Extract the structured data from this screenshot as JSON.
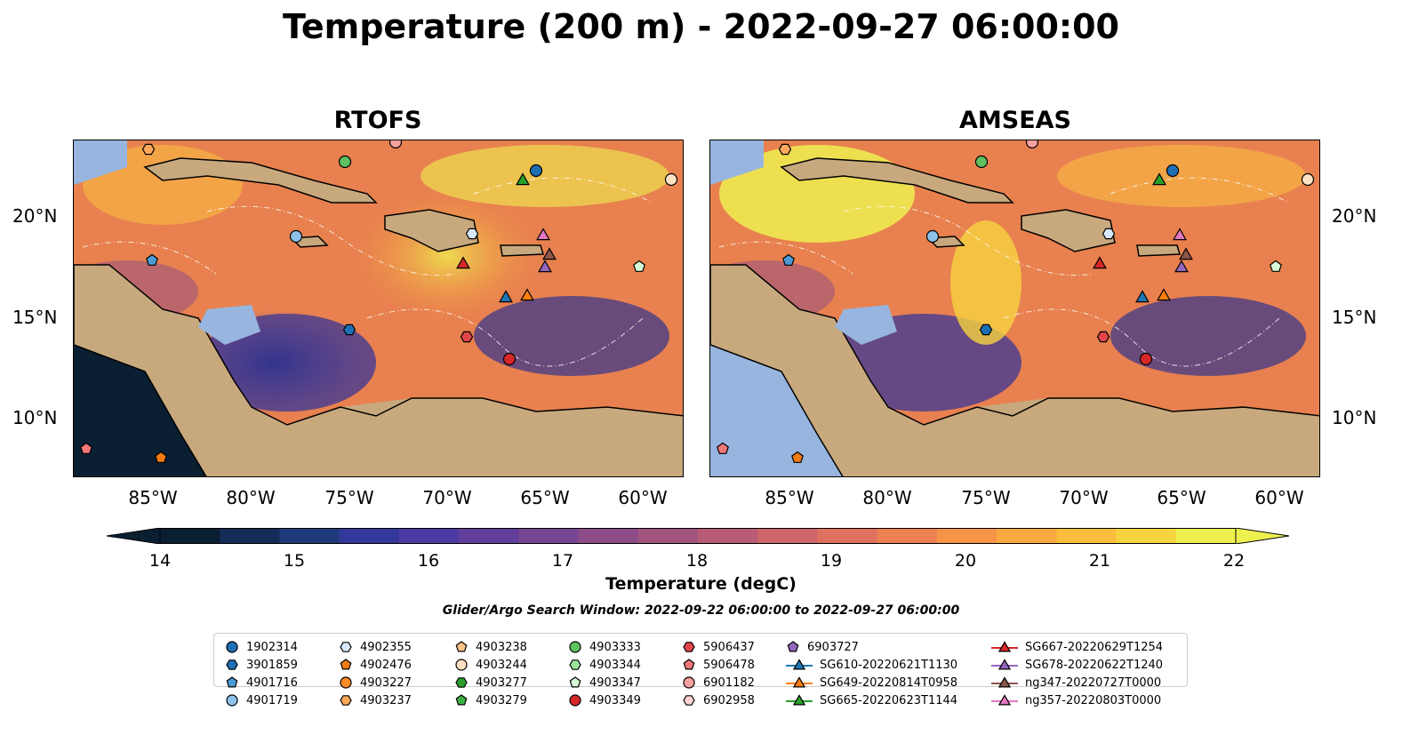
{
  "title": "Temperature (200 m) - 2022-09-27 06:00:00",
  "panels": [
    {
      "title": "RTOFS"
    },
    {
      "title": "AMSEAS"
    }
  ],
  "axes": {
    "x_ticks": [
      "85°W",
      "80°W",
      "75°W",
      "70°W",
      "65°W",
      "60°W"
    ],
    "y_ticks": [
      "20°N",
      "15°N",
      "10°N"
    ]
  },
  "colorbar": {
    "label": "Temperature (degC)",
    "ticks": [
      "14",
      "15",
      "16",
      "17",
      "18",
      "19",
      "20",
      "21",
      "22"
    ],
    "colors": [
      "#0b1f33",
      "#152b58",
      "#1e3a7a",
      "#34389a",
      "#4b3aa1",
      "#603e9a",
      "#764592",
      "#8b4c88",
      "#a1557f",
      "#b85c75",
      "#cf666a",
      "#e07160",
      "#ed8152",
      "#f69447",
      "#faa940",
      "#fbbd3c",
      "#f6d340",
      "#eef050"
    ]
  },
  "search_window": "Glider/Argo Search Window: 2022-09-22 06:00:00 to 2022-09-27 06:00:00",
  "legend": [
    [
      {
        "label": "1902314",
        "marker": "circle",
        "color": "#1f6fb4"
      },
      {
        "label": "3901859",
        "marker": "hexagon",
        "color": "#1f6fb4"
      },
      {
        "label": "4901716",
        "marker": "pentagon",
        "color": "#4a9bd6"
      },
      {
        "label": "4901719",
        "marker": "circle",
        "color": "#8ec2ec"
      }
    ],
    [
      {
        "label": "4902355",
        "marker": "hexagon",
        "color": "#d6e8fb"
      },
      {
        "label": "4902476",
        "marker": "pentagon",
        "color": "#f07a14"
      },
      {
        "label": "4903227",
        "marker": "circle",
        "color": "#ff8a26"
      },
      {
        "label": "4903237",
        "marker": "hexagon",
        "color": "#ffa85a"
      }
    ],
    [
      {
        "label": "4903238",
        "marker": "pentagon",
        "color": "#ffc48c"
      },
      {
        "label": "4903244",
        "marker": "circle",
        "color": "#ffe2c2"
      },
      {
        "label": "4903277",
        "marker": "hexagon",
        "color": "#2ca02c"
      },
      {
        "label": "4903279",
        "marker": "pentagon",
        "color": "#3cb043"
      }
    ],
    [
      {
        "label": "4903333",
        "marker": "circle",
        "color": "#5fc05f"
      },
      {
        "label": "4903344",
        "marker": "hexagon",
        "color": "#9be39b"
      },
      {
        "label": "4903347",
        "marker": "pentagon",
        "color": "#d7f8d4"
      },
      {
        "label": "4903349",
        "marker": "circle",
        "color": "#d62728"
      }
    ],
    [
      {
        "label": "5906437",
        "marker": "hexagon",
        "color": "#e0454a"
      },
      {
        "label": "5906478",
        "marker": "pentagon",
        "color": "#f07878"
      },
      {
        "label": "6901182",
        "marker": "circle",
        "color": "#f7a0a0"
      },
      {
        "label": "6902958",
        "marker": "hexagon",
        "color": "#fcd2d2"
      }
    ],
    [
      {
        "label": "6903727",
        "marker": "pentagon",
        "color": "#9467bd"
      },
      {
        "label": "SG610-20220621T1130",
        "marker": "triangle",
        "color": "#1f77b4"
      },
      {
        "label": "SG649-20220814T0958",
        "marker": "triangle",
        "color": "#ff7f0e"
      },
      {
        "label": "SG665-20220623T1144",
        "marker": "triangle",
        "color": "#2ca02c"
      }
    ],
    [
      {
        "label": "SG667-20220629T1254",
        "marker": "triangle",
        "color": "#d62728"
      },
      {
        "label": "SG678-20220622T1240",
        "marker": "triangle",
        "color": "#9467bd"
      },
      {
        "label": "ng347-20220727T0000",
        "marker": "triangle",
        "color": "#8c564b"
      },
      {
        "label": "ng357-20220803T0000",
        "marker": "triangle",
        "color": "#e377c2"
      }
    ]
  ]
}
